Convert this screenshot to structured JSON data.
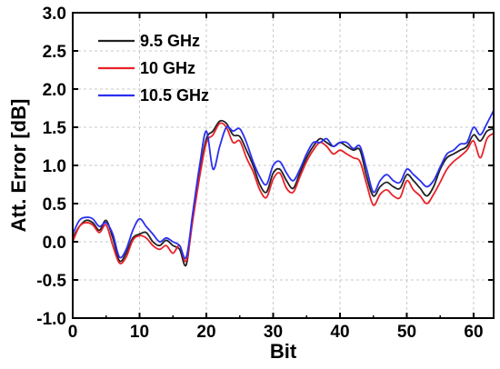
{
  "chart_data": {
    "type": "line",
    "xlabel": "Bit",
    "ylabel": "Att. Error [dB]",
    "xlim": [
      0,
      63
    ],
    "ylim": [
      -1.0,
      3.0
    ],
    "x_ticks": [
      0,
      10,
      20,
      30,
      40,
      50,
      60
    ],
    "y_ticks": [
      -1.0,
      -0.5,
      0.0,
      0.5,
      1.0,
      1.5,
      2.0,
      2.5,
      3.0
    ],
    "x_tick_labels": [
      "0",
      "10",
      "20",
      "30",
      "40",
      "50",
      "60"
    ],
    "y_tick_labels": [
      "-1.0",
      "-0.5",
      "0.0",
      "0.5",
      "1.0",
      "1.5",
      "2.0",
      "2.5",
      "3.0"
    ],
    "grid": true,
    "legend_position": "top-left",
    "x": [
      0,
      1,
      2,
      3,
      4,
      5,
      6,
      7,
      8,
      9,
      10,
      11,
      12,
      13,
      14,
      15,
      16,
      17,
      18,
      19,
      20,
      21,
      22,
      23,
      24,
      25,
      26,
      27,
      28,
      29,
      30,
      31,
      32,
      33,
      34,
      35,
      36,
      37,
      38,
      39,
      40,
      41,
      42,
      43,
      44,
      45,
      46,
      47,
      48,
      49,
      50,
      51,
      52,
      53,
      54,
      55,
      56,
      57,
      58,
      59,
      60,
      61,
      62,
      63
    ],
    "series": [
      {
        "name": "9.5 GHz",
        "color": "#222222",
        "values": [
          0.05,
          0.2,
          0.28,
          0.25,
          0.15,
          0.28,
          0.05,
          -0.25,
          -0.15,
          0.05,
          0.1,
          0.12,
          0.0,
          -0.05,
          0.02,
          -0.05,
          -0.1,
          -0.3,
          0.35,
          0.9,
          1.35,
          1.45,
          1.58,
          1.55,
          1.4,
          1.38,
          1.2,
          1.0,
          0.75,
          0.65,
          0.9,
          0.95,
          0.8,
          0.7,
          0.9,
          1.1,
          1.25,
          1.35,
          1.3,
          1.25,
          1.3,
          1.25,
          1.2,
          1.2,
          0.85,
          0.6,
          0.72,
          0.78,
          0.72,
          0.7,
          0.88,
          0.8,
          0.7,
          0.6,
          0.72,
          0.95,
          1.1,
          1.15,
          1.2,
          1.25,
          1.4,
          1.32,
          1.45,
          1.48
        ]
      },
      {
        "name": "10 GHz",
        "color": "#e8222a",
        "values": [
          0.0,
          0.2,
          0.25,
          0.22,
          0.12,
          0.22,
          -0.05,
          -0.28,
          -0.2,
          0.02,
          0.08,
          0.05,
          -0.05,
          -0.1,
          -0.05,
          -0.15,
          -0.05,
          -0.25,
          0.3,
          0.85,
          1.3,
          1.4,
          1.55,
          1.5,
          1.3,
          1.32,
          1.1,
          0.92,
          0.68,
          0.58,
          0.82,
          0.9,
          0.7,
          0.65,
          0.85,
          1.05,
          1.2,
          1.3,
          1.25,
          1.15,
          1.2,
          1.15,
          1.1,
          1.05,
          0.75,
          0.48,
          0.62,
          0.68,
          0.6,
          0.58,
          0.8,
          0.68,
          0.6,
          0.5,
          0.62,
          0.78,
          0.95,
          1.05,
          1.12,
          1.2,
          1.32,
          1.1,
          1.35,
          1.42
        ]
      },
      {
        "name": "10.5 GHz",
        "color": "#2a2ff0",
        "values": [
          0.1,
          0.28,
          0.32,
          0.3,
          0.2,
          0.25,
          0.1,
          -0.2,
          -0.1,
          0.15,
          0.3,
          0.2,
          0.1,
          0.0,
          0.05,
          0.0,
          -0.05,
          -0.2,
          0.4,
          1.0,
          1.45,
          0.95,
          1.25,
          1.5,
          1.45,
          1.48,
          1.3,
          1.05,
          0.85,
          0.75,
          1.0,
          1.05,
          0.9,
          0.8,
          0.95,
          1.15,
          1.3,
          1.3,
          1.35,
          1.25,
          1.3,
          1.3,
          1.22,
          1.25,
          0.95,
          0.65,
          0.8,
          0.88,
          0.8,
          0.78,
          0.95,
          0.88,
          0.8,
          0.72,
          0.8,
          0.98,
          1.15,
          1.2,
          1.28,
          1.3,
          1.5,
          1.4,
          1.55,
          1.72
        ]
      }
    ]
  }
}
